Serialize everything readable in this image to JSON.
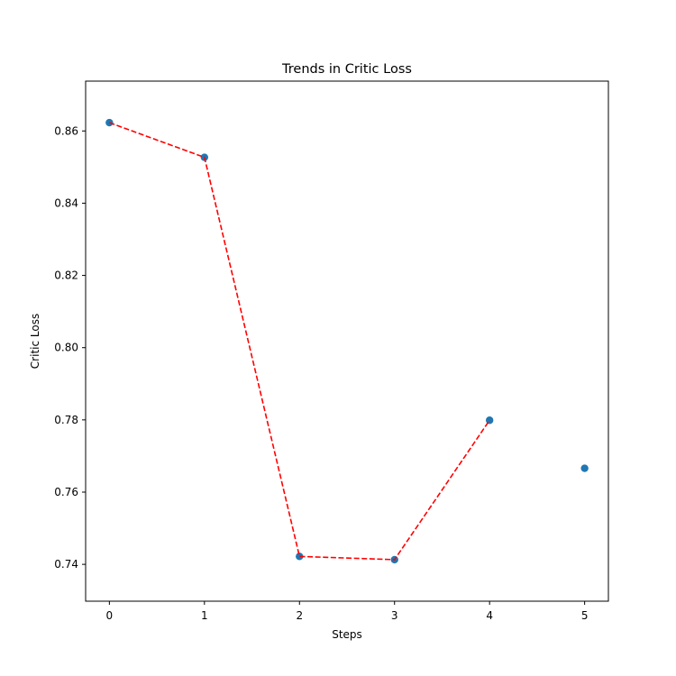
{
  "chart_data": {
    "type": "scatter",
    "title": "Trends in Critic Loss",
    "xlabel": "Steps",
    "ylabel": "Critic Loss",
    "xlim": [
      -0.25,
      5.25
    ],
    "ylim": [
      0.7298,
      0.8738
    ],
    "x_ticks": [
      0,
      1,
      2,
      3,
      4,
      5
    ],
    "x_tick_labels": [
      "0",
      "1",
      "2",
      "3",
      "4",
      "5"
    ],
    "y_ticks": [
      0.74,
      0.76,
      0.78,
      0.8,
      0.82,
      0.84,
      0.86
    ],
    "y_tick_labels": [
      "0.74",
      "0.76",
      "0.78",
      "0.80",
      "0.82",
      "0.84",
      "0.86"
    ],
    "grid": false,
    "series": [
      {
        "name": "critic loss points",
        "kind": "scatter",
        "color": "#1f77b4",
        "x": [
          0,
          1,
          2,
          3,
          4,
          5
        ],
        "y": [
          0.8623,
          0.8527,
          0.7422,
          0.7413,
          0.7799,
          0.7666
        ]
      },
      {
        "name": "trend line",
        "kind": "line",
        "style": "dashed",
        "color": "#ff0000",
        "x": [
          0,
          1,
          2,
          3,
          4
        ],
        "y": [
          0.8623,
          0.8527,
          0.7422,
          0.7413,
          0.7799
        ]
      }
    ]
  }
}
